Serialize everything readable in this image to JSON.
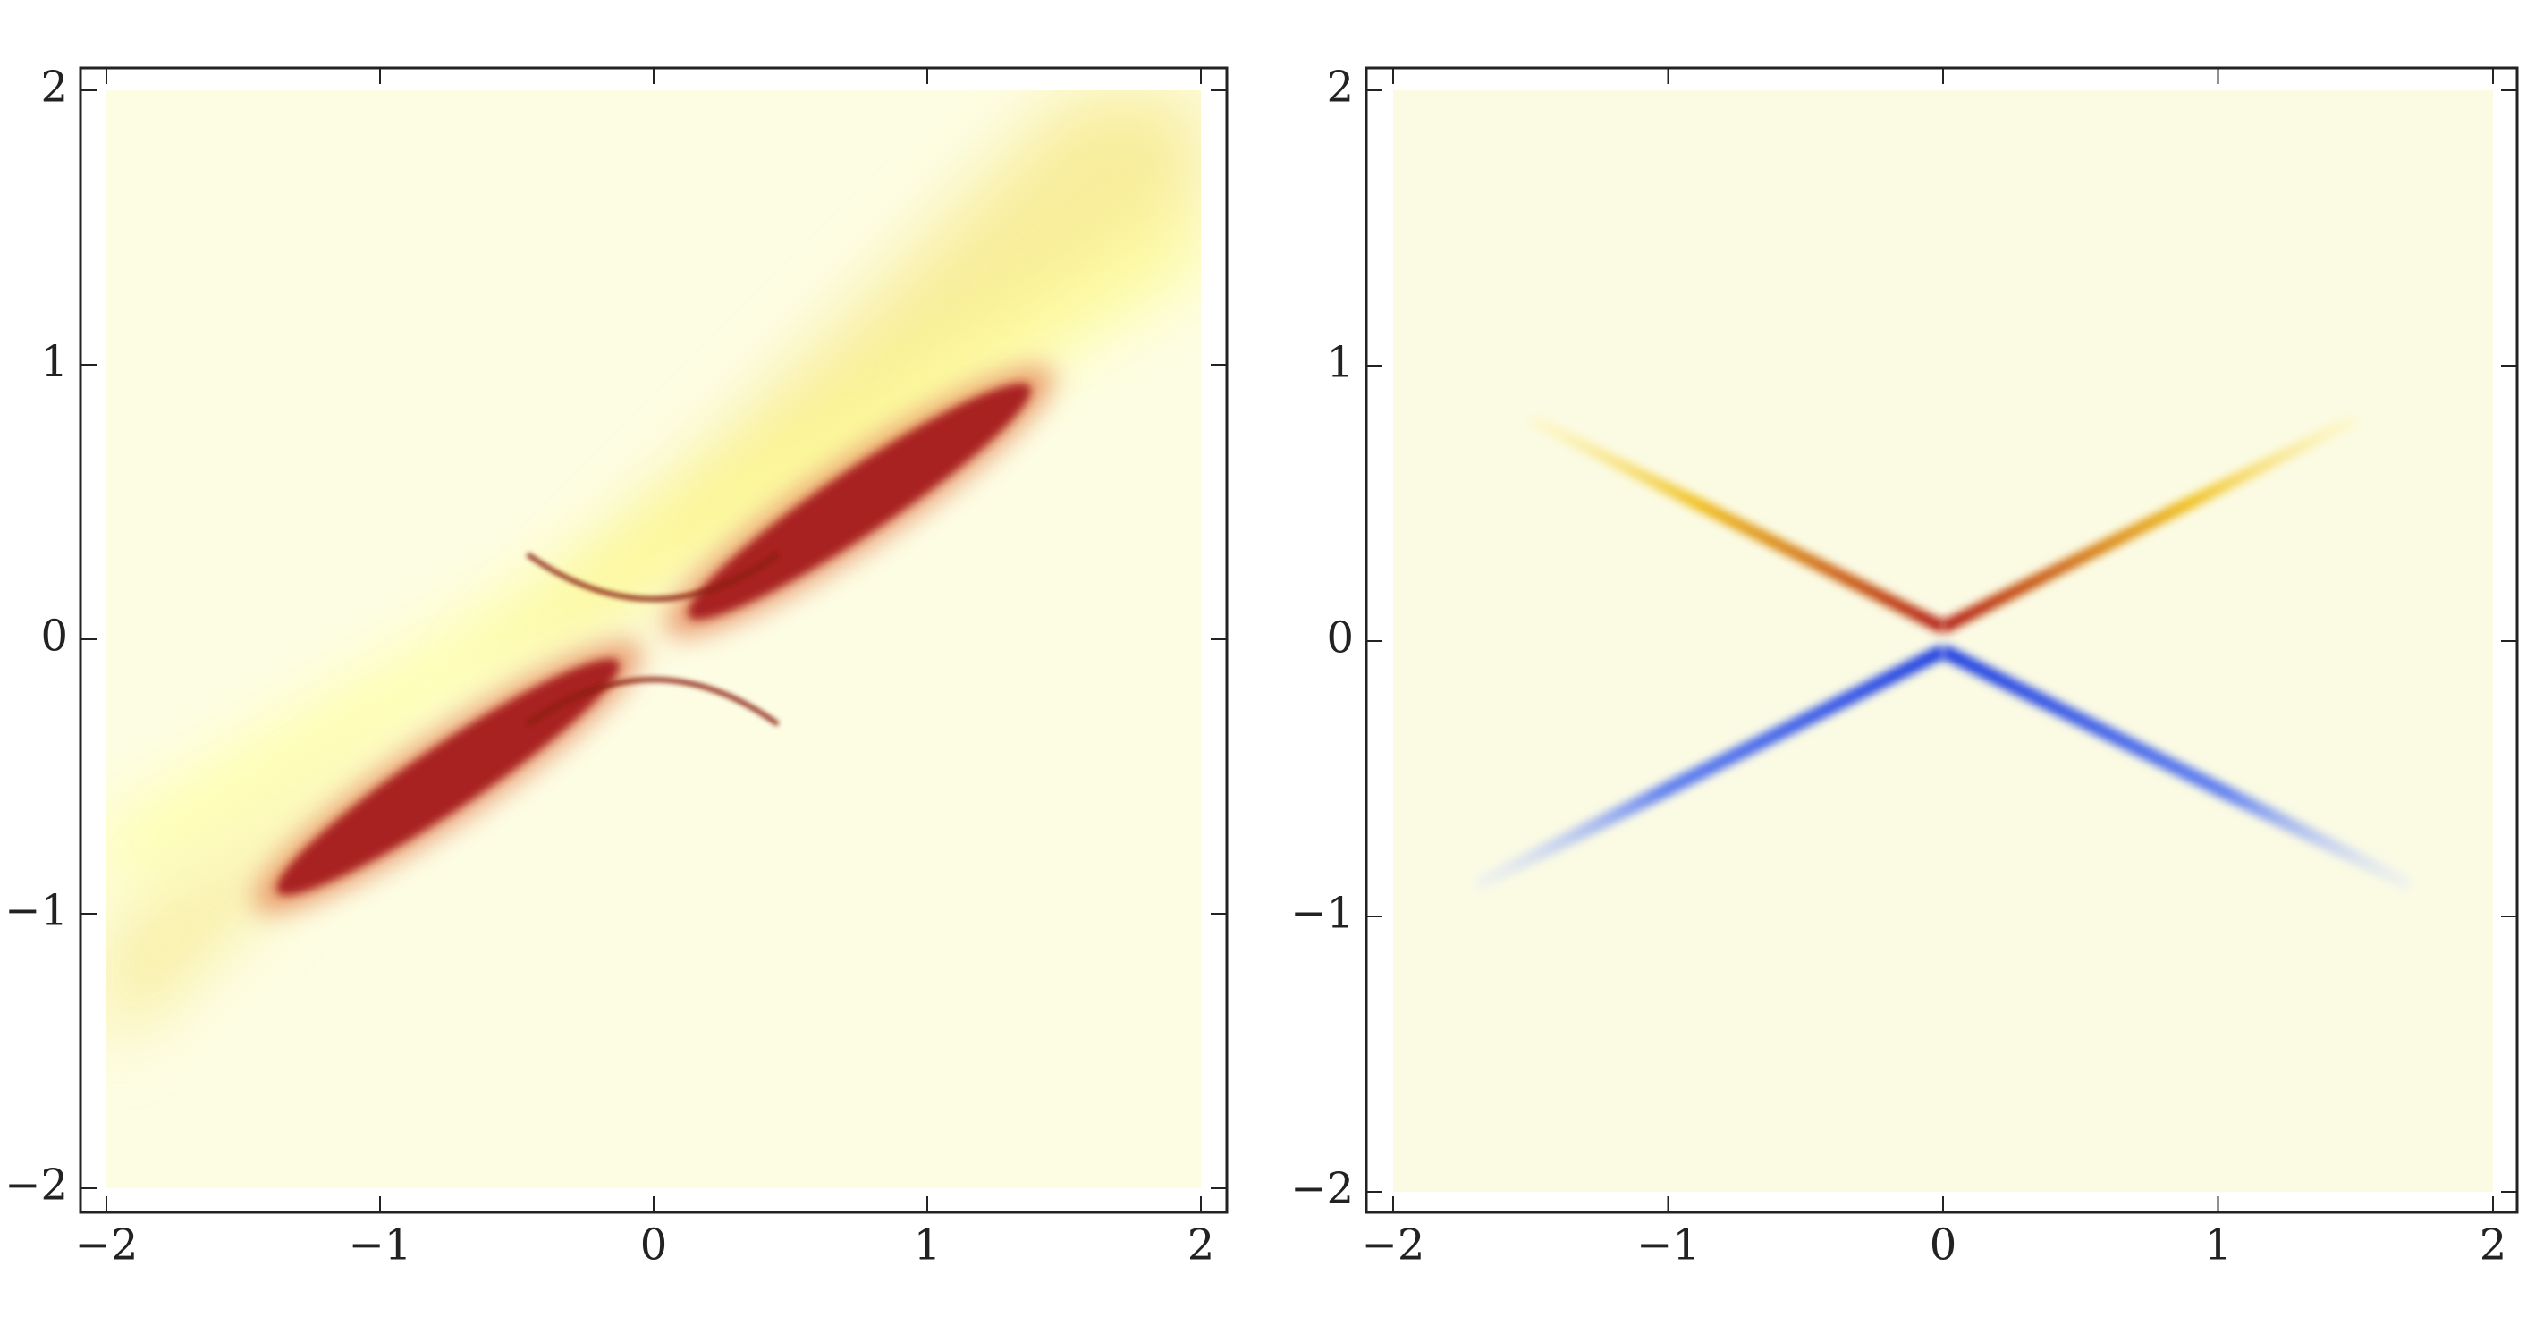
{
  "chart_data": [
    {
      "type": "density",
      "xlim": [
        -2,
        2
      ],
      "ylim": [
        -2,
        2
      ],
      "xticks": [
        {
          "value": -2,
          "label": "−2"
        },
        {
          "value": -1,
          "label": "−1"
        },
        0,
        1,
        2
      ],
      "yticks": [
        {
          "value": -2,
          "label": "−2"
        },
        {
          "value": -1,
          "label": "−1"
        },
        0,
        1,
        2
      ]
    },
    {
      "type": "density",
      "xlim": [
        -2,
        2
      ],
      "ylim": [
        -2,
        2
      ],
      "xticks": [
        {
          "value": -2,
          "label": "−2"
        },
        {
          "value": -1,
          "label": "−1"
        },
        0,
        1,
        2
      ],
      "yticks": [
        {
          "value": -2,
          "label": "−2"
        },
        {
          "value": -1,
          "label": "−1"
        },
        0,
        1,
        2
      ]
    }
  ]
}
